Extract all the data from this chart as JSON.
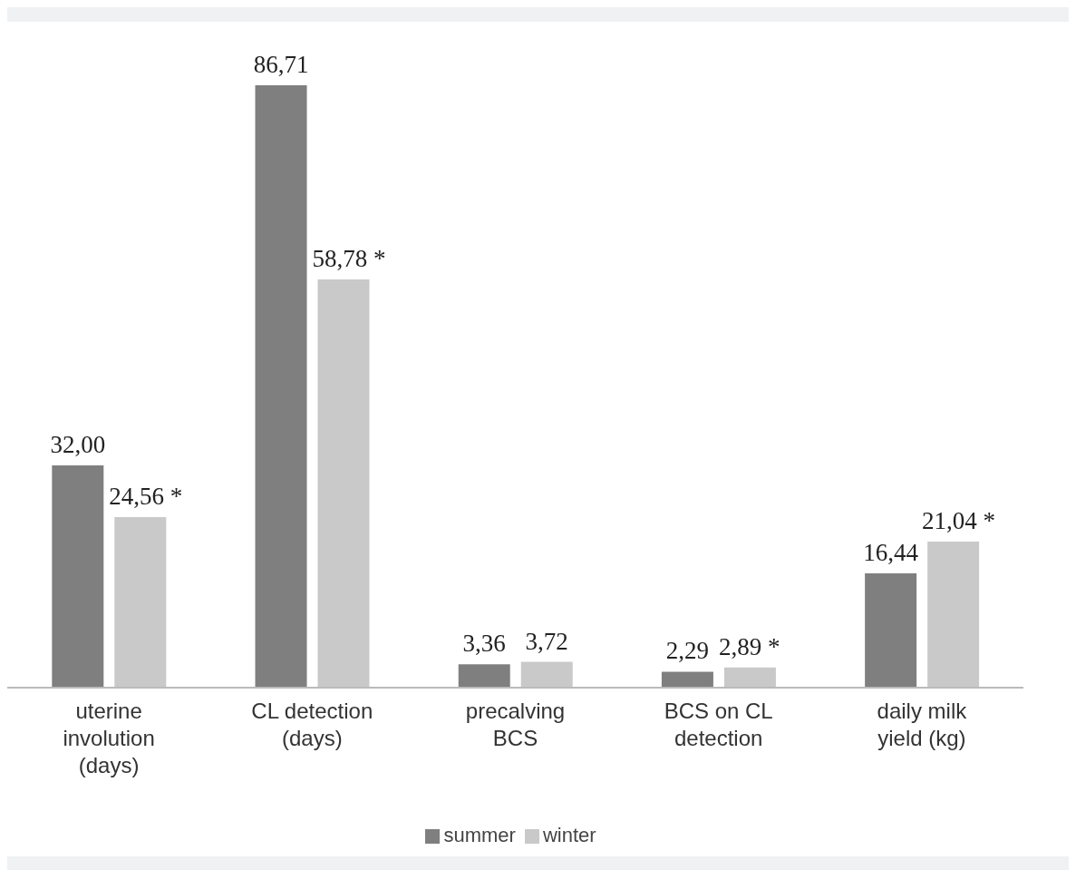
{
  "chart_data": {
    "type": "bar",
    "categories": [
      "uterine involution (days)",
      "CL detection (days)",
      "precalving BCS",
      "BCS on CL detection",
      "daily milk yield (kg)"
    ],
    "series": [
      {
        "name": "summer",
        "color": "#7f7f7f",
        "values": [
          32.0,
          86.71,
          3.36,
          2.29,
          16.44
        ],
        "value_labels": [
          "32,00",
          "86,71",
          "3,36",
          "2,29",
          "16,44"
        ]
      },
      {
        "name": "winter",
        "color": "#c9c9c9",
        "values": [
          24.56,
          58.78,
          3.72,
          2.89,
          21.04
        ],
        "value_labels": [
          "24,56 *",
          "58,78 *",
          "3,72",
          "2,89 *",
          "21,04 *"
        ]
      }
    ],
    "legend": "bottom",
    "grid": false
  }
}
